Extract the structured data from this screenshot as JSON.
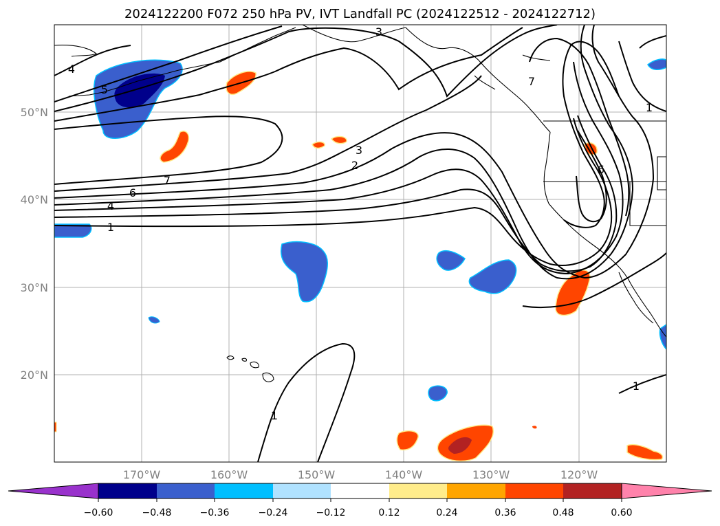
{
  "title": "2024122200 F072 250 hPa PV, IVT Landfall PC (2024122512 - 2024122712)",
  "map": {
    "lat_labels": [
      "50°N",
      "40°N",
      "30°N",
      "20°N"
    ],
    "lon_labels": [
      "170°W",
      "160°W",
      "150°W",
      "140°W",
      "130°W",
      "120°W"
    ],
    "contour_labels": [
      "3",
      "4",
      "5",
      "7",
      "7",
      "1",
      "6",
      "4",
      "1",
      "3",
      "2",
      "6",
      "1",
      "1"
    ],
    "contour_color": "#000000",
    "coastline_color": "#000000",
    "grid_color": "#b0b0b0"
  },
  "colorbar": {
    "tick_labels": [
      "−0.60",
      "−0.48",
      "−0.36",
      "−0.24",
      "−0.12",
      "0.12",
      "0.24",
      "0.36",
      "0.48",
      "0.60"
    ],
    "colors": [
      "#9932cc",
      "#00008b",
      "#3a5fcd",
      "#00bfff",
      "#b0e2ff",
      "#ffffff",
      "#ffec8b",
      "#ffa500",
      "#ff4500",
      "#b22222",
      "#ff82ab"
    ]
  }
}
